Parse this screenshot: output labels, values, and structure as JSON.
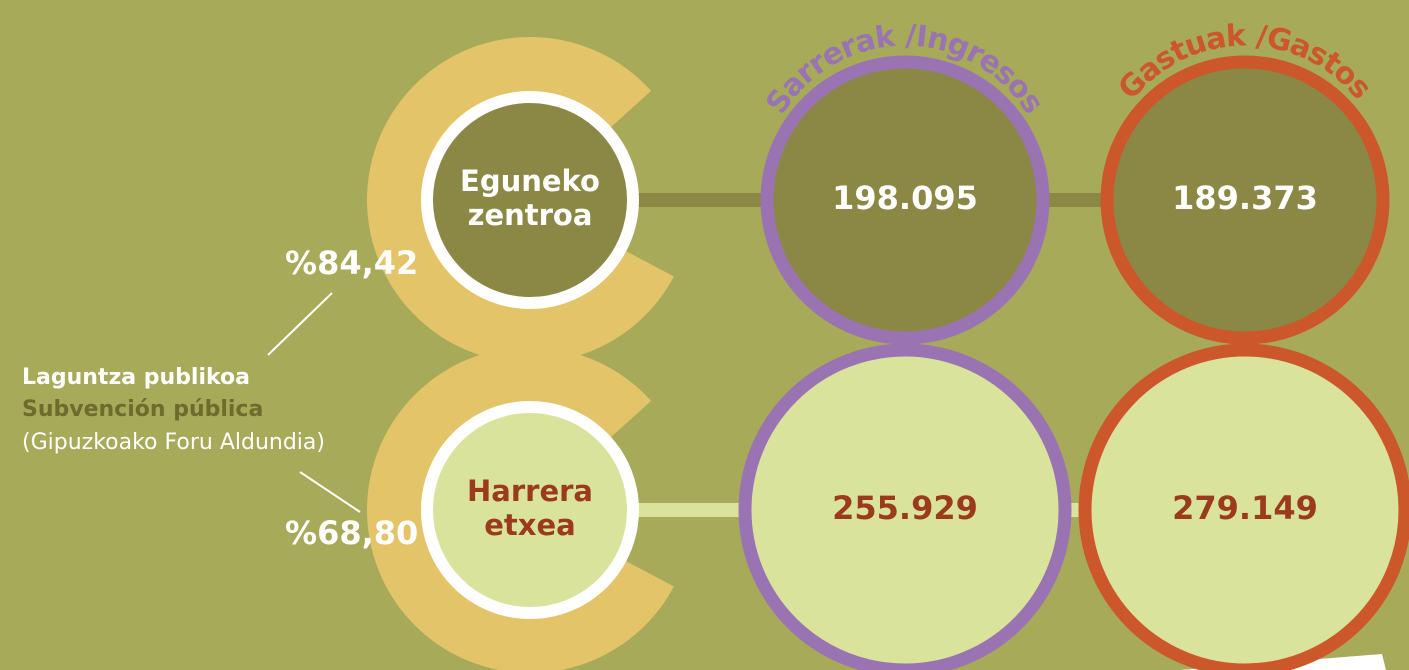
{
  "left_label": {
    "title": "Laguntza publikoa",
    "subtitle": "Subvención pública",
    "source": "(Gipuzkoako Foru Aldundia)"
  },
  "columns": [
    "Sarrerak /Ingresos",
    "Gastuak /Gastos"
  ],
  "rows": [
    {
      "name": [
        "Eguneko",
        "zentroa"
      ],
      "percent": "%84,42",
      "values": [
        "198.095",
        "189.373"
      ]
    },
    {
      "name": [
        "Harrera",
        "etxea"
      ],
      "percent": "%68,80",
      "values": [
        "255.929",
        "279.149"
      ]
    }
  ]
}
